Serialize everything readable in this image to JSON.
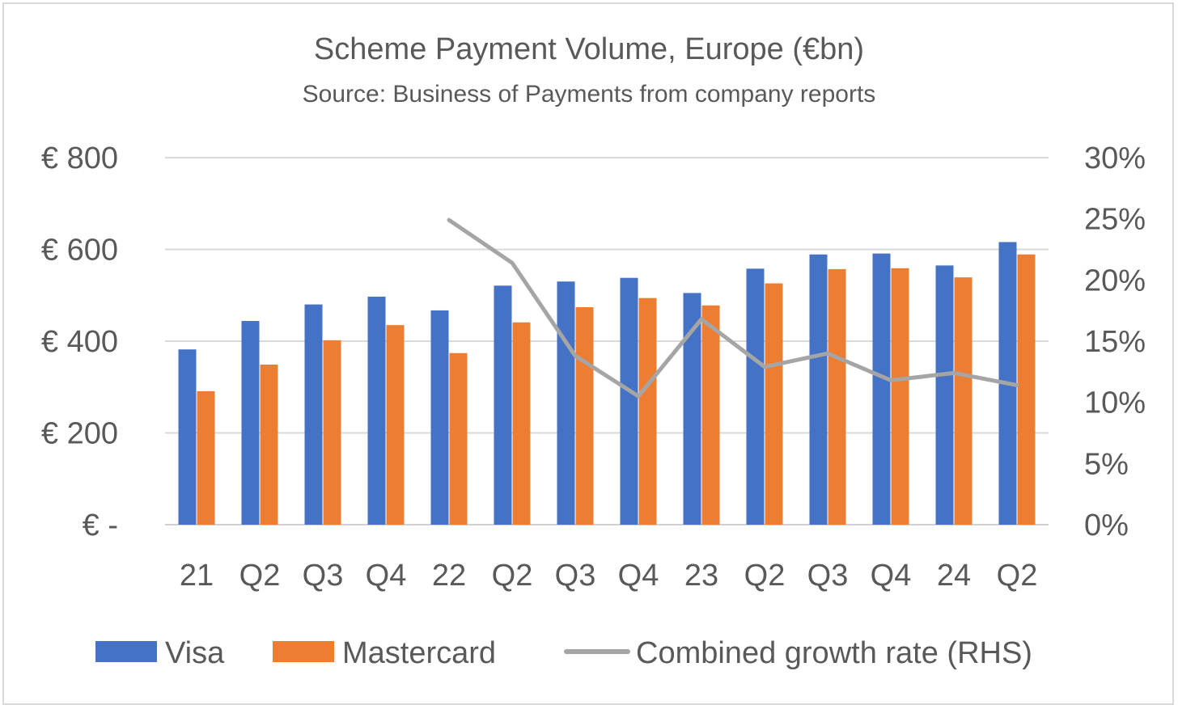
{
  "chart_data": {
    "type": "bar",
    "title": "Scheme Payment Volume, Europe (€bn)",
    "subtitle": "Source: Business of Payments from company reports",
    "categories": [
      "21",
      "Q2",
      "Q3",
      "Q4",
      "22",
      "Q2",
      "Q3",
      "Q4",
      "23",
      "Q2",
      "Q3",
      "Q4",
      "24",
      "Q2"
    ],
    "series": [
      {
        "name": "Visa",
        "color": "#4472c4",
        "values": [
          382,
          444,
          480,
          497,
          467,
          521,
          530,
          538,
          505,
          558,
          589,
          591,
          565,
          616
        ]
      },
      {
        "name": "Mastercard",
        "color": "#ed7d31",
        "values": [
          291,
          349,
          402,
          435,
          374,
          441,
          474,
          494,
          478,
          526,
          557,
          559,
          539,
          589
        ]
      }
    ],
    "line_series": {
      "name": "Combined growth rate (RHS)",
      "color": "#a5a5a5",
      "axis": "right",
      "values": [
        null,
        null,
        null,
        null,
        24.9,
        21.4,
        13.8,
        10.5,
        16.8,
        12.9,
        14.0,
        11.8,
        12.4,
        11.4
      ]
    },
    "ylim_left": [
      0,
      800
    ],
    "yticks_left": [
      "€ -",
      "€ 200",
      "€ 400",
      "€ 600",
      "€ 800"
    ],
    "ylim_right": [
      0,
      30
    ],
    "yticks_right": [
      "0%",
      "5%",
      "10%",
      "15%",
      "20%",
      "25%",
      "30%"
    ],
    "grid": true,
    "legend_position": "bottom"
  }
}
